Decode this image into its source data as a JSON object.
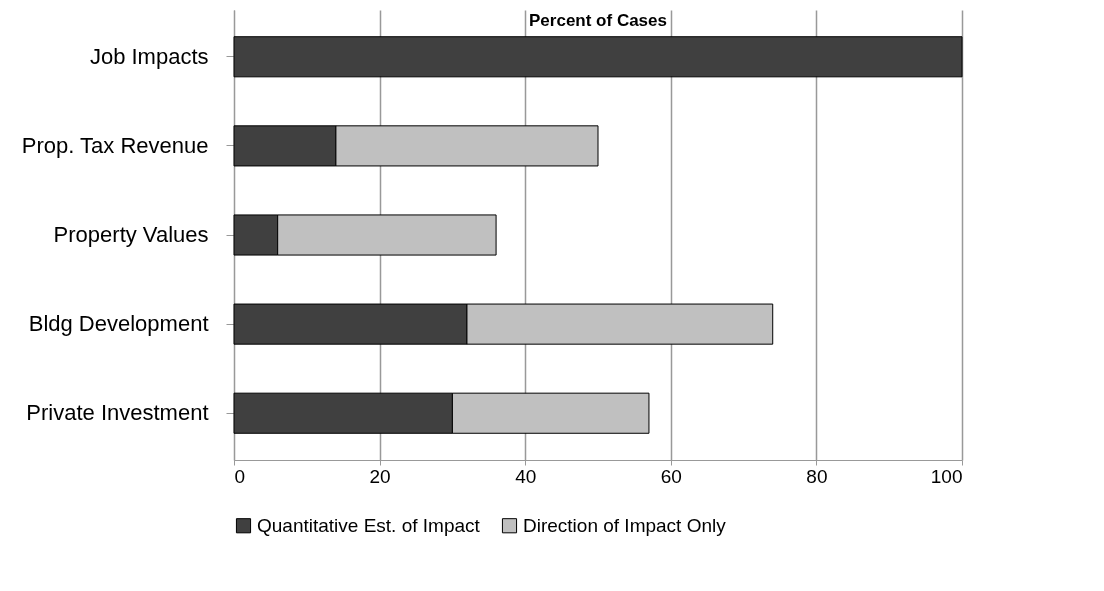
{
  "chart_data": {
    "type": "bar",
    "orientation": "horizontal",
    "stacked": true,
    "title": "Percent of Cases",
    "categories": [
      "Job Impacts",
      "Prop. Tax Revenue",
      "Property Values",
      "Bldg Development",
      "Private Investment"
    ],
    "series": [
      {
        "name": "Quantitative Est. of Impact",
        "color": "#404040",
        "values": [
          100,
          14,
          6,
          32,
          30
        ]
      },
      {
        "name": "Direction of Impact Only",
        "color": "#c0c0c0",
        "values": [
          null,
          36,
          30,
          42,
          27
        ]
      }
    ],
    "xlim": [
      0,
      100
    ],
    "xticks": [
      0,
      20,
      40,
      60,
      80,
      100
    ],
    "grid": "x",
    "legend": "bottom"
  }
}
